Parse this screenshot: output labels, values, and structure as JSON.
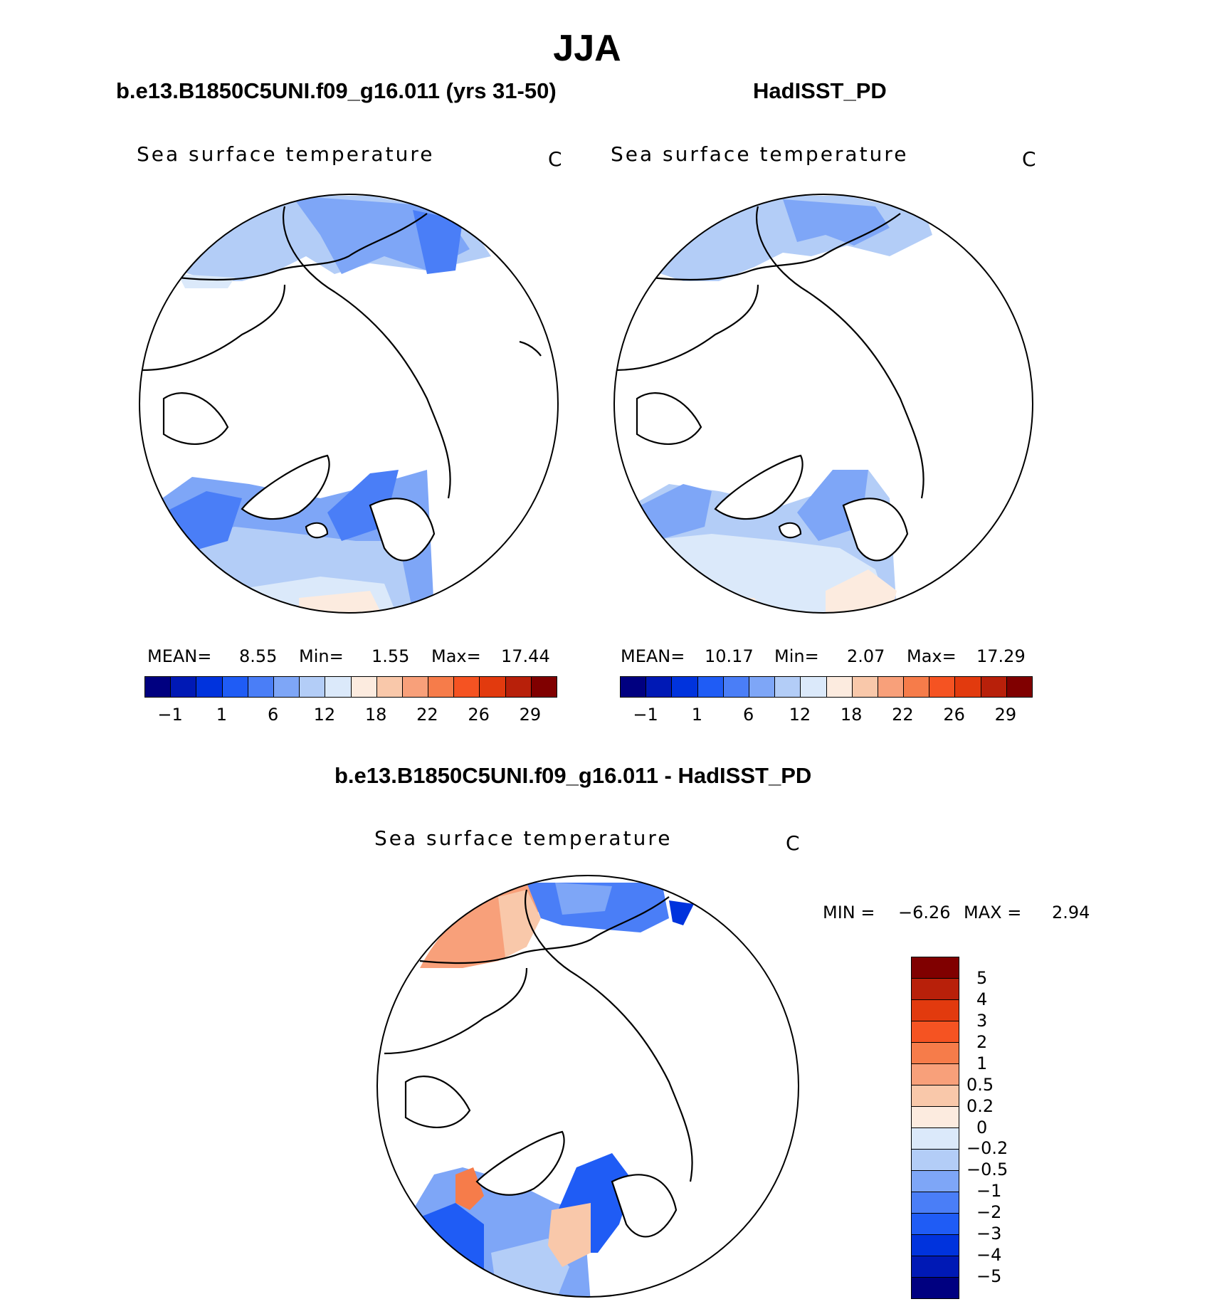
{
  "figure": {
    "season": "JJA",
    "panel_left": {
      "title": "b.e13.B1850C5UNI.f09_g16.011 (yrs 31-50)",
      "variable": "Sea surface temperature",
      "units": "C",
      "mean_label": "MEAN=",
      "mean": "8.55",
      "min_label": "Min=",
      "min": "1.55",
      "max_label": "Max=",
      "max": "17.44"
    },
    "panel_right": {
      "title": "HadISST_PD",
      "variable": "Sea surface temperature",
      "units": "C",
      "mean_label": "MEAN=",
      "mean": "10.17",
      "min_label": "Min=",
      "min": "2.07",
      "max_label": "Max=",
      "max": "17.29"
    },
    "panel_diff": {
      "title": "b.e13.B1850C5UNI.f09_g16.011 - HadISST_PD",
      "variable": "Sea surface temperature",
      "units": "C",
      "min_label": "MIN =",
      "min": "−6.26",
      "max_label": "MAX =",
      "max": "2.94"
    }
  },
  "colorbar_abs": {
    "colors": [
      "#000080",
      "#0019b5",
      "#0033dd",
      "#1f5cf5",
      "#4a7ef7",
      "#7ea6f7",
      "#b3cdf7",
      "#dbe9fa",
      "#fcebdf",
      "#f9c8aa",
      "#f8a07a",
      "#f67c4a",
      "#f55322",
      "#e23a0e",
      "#b8200a",
      "#800000"
    ],
    "tick_labels": [
      "−1",
      "1",
      "6",
      "12",
      "18",
      "22",
      "26",
      "29"
    ]
  },
  "colorbar_diff": {
    "colors": [
      "#800000",
      "#b8200a",
      "#e23a0e",
      "#f55322",
      "#f67c4a",
      "#f8a07a",
      "#f9c8aa",
      "#fcebdf",
      "#dbe9fa",
      "#b3cdf7",
      "#7ea6f7",
      "#4a7ef7",
      "#1f5cf5",
      "#0033dd",
      "#0019b5",
      "#000080"
    ],
    "tick_labels": [
      "5",
      "4",
      "3",
      "2",
      "1",
      "0.5",
      "0.2",
      "0",
      "−0.2",
      "−0.5",
      "−1",
      "−2",
      "−3",
      "−4",
      "−5"
    ]
  }
}
